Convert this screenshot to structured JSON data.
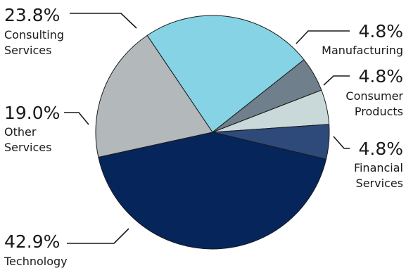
{
  "chart_data": {
    "type": "pie",
    "start_angle_deg": -34,
    "direction": "clockwise",
    "slices": [
      {
        "label": [
          "Consulting",
          "Services"
        ],
        "value": 23.8,
        "value_label": "23.8%",
        "color": "#85d3e4"
      },
      {
        "label": [
          "Manufacturing"
        ],
        "value": 4.8,
        "value_label": "4.8%",
        "color": "#6f7f8c"
      },
      {
        "label": [
          "Consumer",
          "Products"
        ],
        "value": 4.8,
        "value_label": "4.8%",
        "color": "#c9d8d8"
      },
      {
        "label": [
          "Financial",
          "Services"
        ],
        "value": 4.8,
        "value_label": "4.8%",
        "color": "#2e4a7a"
      },
      {
        "label": [
          "Technology"
        ],
        "value": 42.9,
        "value_label": "42.9%",
        "color": "#05255b"
      },
      {
        "label": [
          "Other",
          "Services"
        ],
        "value": 19.0,
        "value_label": "19.0%",
        "color": "#b3b8bb"
      }
    ]
  }
}
